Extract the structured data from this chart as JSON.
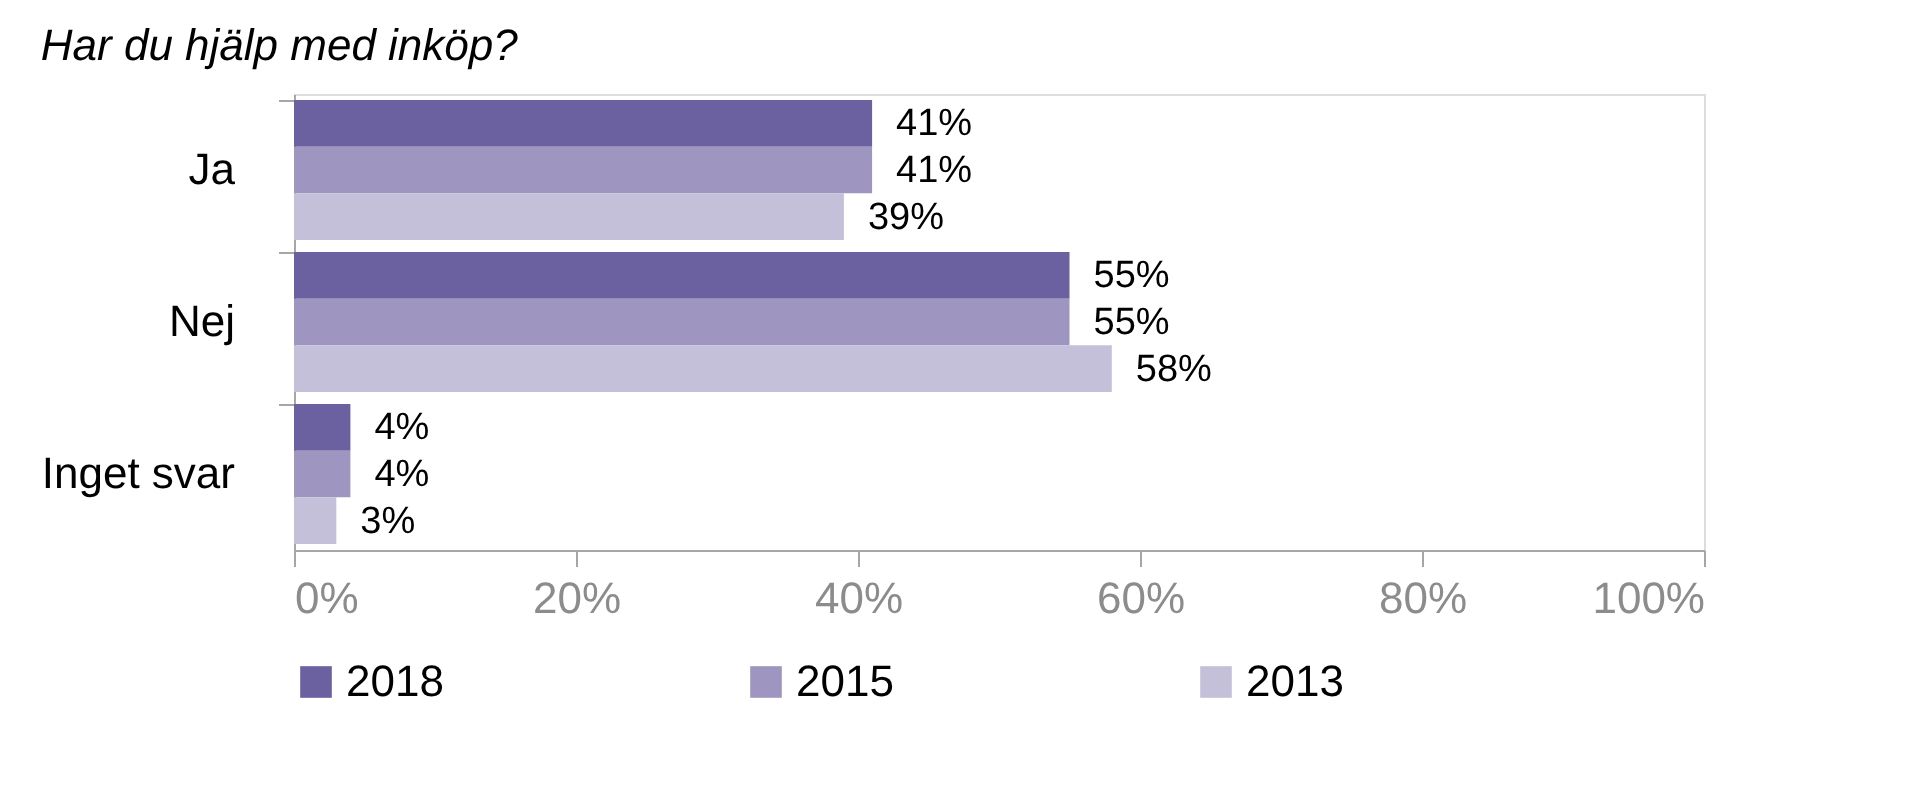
{
  "chart_data": {
    "type": "bar",
    "orientation": "horizontal",
    "title": "Har du hjälp med inköp?",
    "categories": [
      "Ja",
      "Nej",
      "Inget svar"
    ],
    "series": [
      {
        "name": "2018",
        "color": "#6b61a0",
        "values": [
          41,
          55,
          4
        ],
        "value_labels": [
          "41%",
          "55%",
          "4%"
        ]
      },
      {
        "name": "2015",
        "color": "#9e96c0",
        "values": [
          41,
          55,
          4
        ],
        "value_labels": [
          "41%",
          "55%",
          "4%"
        ]
      },
      {
        "name": "2013",
        "color": "#c4c0da",
        "values": [
          39,
          58,
          3
        ],
        "value_labels": [
          "39%",
          "58%",
          "3%"
        ]
      }
    ],
    "xlim": [
      0,
      100
    ],
    "xticks": [
      {
        "value": 0,
        "label": "0%"
      },
      {
        "value": 20,
        "label": "20%"
      },
      {
        "value": 40,
        "label": "40%"
      },
      {
        "value": 60,
        "label": "60%"
      },
      {
        "value": 80,
        "label": "80%"
      },
      {
        "value": 100,
        "label": "100%"
      }
    ],
    "grid": false,
    "legend": "bottom"
  }
}
